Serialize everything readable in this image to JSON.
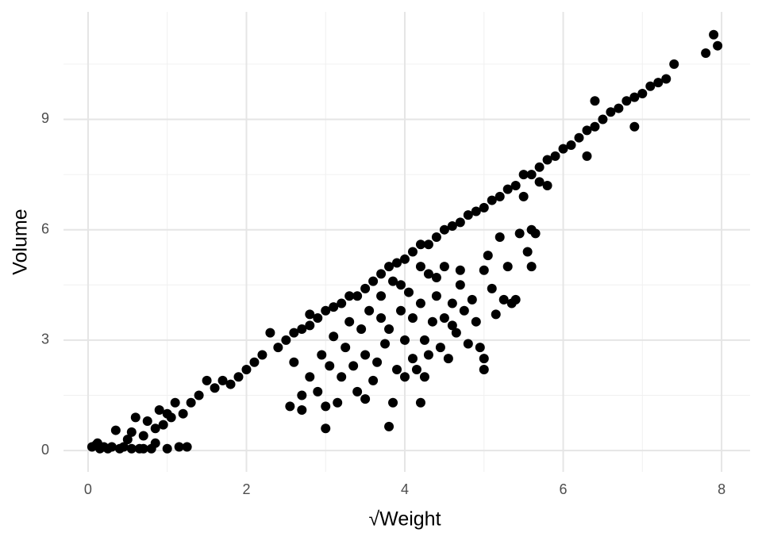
{
  "chart_data": {
    "type": "scatter",
    "x_label": "√Weight",
    "y_label": "Volume",
    "xlim": [
      -0.31,
      8.36
    ],
    "ylim": [
      -0.58,
      11.92
    ],
    "xticks": [
      0,
      2,
      4,
      6,
      8
    ],
    "yticks": [
      0,
      3,
      6,
      9
    ],
    "grid": true,
    "color": "#000000",
    "x": [
      0.05,
      0.1,
      0.15,
      0.2,
      0.25,
      0.3,
      0.35,
      0.4,
      0.45,
      0.5,
      0.55,
      0.6,
      0.65,
      0.7,
      0.75,
      0.8,
      0.85,
      0.9,
      0.95,
      1.0,
      1.05,
      1.1,
      1.15,
      1.2,
      1.25,
      0.85,
      0.55,
      0.12,
      0.7,
      1.0,
      1.3,
      1.4,
      1.5,
      1.6,
      1.7,
      1.8,
      1.9,
      2.0,
      2.1,
      2.2,
      2.3,
      2.4,
      2.5,
      2.6,
      2.7,
      2.8,
      2.9,
      3.0,
      3.1,
      3.2,
      3.3,
      3.4,
      3.5,
      3.6,
      3.7,
      3.8,
      3.9,
      4.0,
      4.1,
      4.2,
      4.3,
      4.4,
      4.5,
      4.6,
      4.7,
      4.8,
      4.9,
      5.0,
      5.1,
      5.2,
      5.3,
      5.4,
      5.5,
      5.6,
      5.7,
      5.8,
      5.9,
      6.0,
      6.1,
      6.2,
      6.3,
      6.4,
      6.5,
      6.6,
      6.7,
      6.8,
      6.9,
      7.0,
      7.1,
      7.2,
      7.3,
      7.4,
      7.8,
      7.9,
      7.95,
      6.3,
      6.4,
      5.7,
      5.8,
      6.9,
      5.5,
      2.55,
      2.6,
      2.7,
      2.7,
      2.8,
      2.8,
      2.9,
      2.95,
      3.0,
      3.0,
      3.05,
      3.1,
      3.15,
      3.2,
      3.25,
      3.3,
      3.35,
      3.4,
      3.45,
      3.5,
      3.5,
      3.55,
      3.6,
      3.65,
      3.7,
      3.7,
      3.75,
      3.8,
      3.8,
      3.85,
      3.85,
      3.9,
      3.95,
      4.0,
      4.0,
      4.05,
      4.1,
      4.1,
      4.15,
      4.2,
      4.2,
      4.25,
      4.3,
      4.3,
      4.35,
      4.4,
      4.45,
      4.5,
      4.5,
      4.55,
      4.6,
      4.65,
      4.7,
      4.75,
      4.8,
      4.85,
      4.9,
      4.95,
      5.0,
      5.0,
      5.05,
      5.1,
      5.15,
      5.2,
      5.25,
      5.3,
      5.35,
      5.4,
      5.45,
      5.55,
      5.6,
      5.6,
      5.65,
      4.2,
      4.4,
      3.95,
      4.7,
      5.0,
      4.6,
      4.25
    ],
    "y": [
      0.1,
      0.15,
      0.05,
      0.1,
      0.05,
      0.1,
      0.55,
      0.05,
      0.1,
      0.3,
      0.5,
      0.9,
      0.05,
      0.4,
      0.8,
      0.05,
      0.6,
      1.1,
      0.7,
      0.05,
      0.9,
      1.3,
      0.1,
      1.0,
      0.1,
      0.2,
      0.05,
      0.2,
      0.05,
      1.0,
      1.3,
      1.5,
      1.9,
      1.7,
      1.9,
      1.8,
      2.0,
      2.2,
      2.4,
      2.6,
      3.2,
      2.8,
      3.0,
      3.2,
      3.3,
      3.4,
      3.6,
      3.8,
      3.9,
      4.0,
      4.2,
      4.2,
      4.4,
      4.6,
      4.8,
      5.0,
      5.1,
      5.2,
      5.4,
      5.6,
      5.6,
      5.8,
      6.0,
      6.1,
      6.2,
      6.4,
      6.5,
      6.6,
      6.8,
      6.9,
      7.1,
      7.2,
      7.5,
      7.5,
      7.7,
      7.9,
      8.0,
      8.2,
      8.3,
      8.5,
      8.7,
      8.8,
      9.0,
      9.2,
      9.3,
      9.5,
      9.6,
      9.7,
      9.9,
      10.0,
      10.1,
      10.5,
      10.8,
      11.3,
      11.0,
      8.0,
      9.5,
      7.3,
      7.2,
      8.8,
      6.9,
      1.2,
      2.4,
      1.5,
      1.1,
      3.7,
      2.0,
      1.6,
      2.6,
      0.6,
      1.2,
      2.3,
      3.1,
      1.3,
      2.0,
      2.8,
      3.5,
      2.3,
      1.6,
      3.3,
      1.4,
      2.6,
      3.8,
      1.9,
      2.4,
      3.6,
      4.2,
      2.9,
      0.65,
      3.3,
      1.3,
      4.6,
      2.2,
      3.8,
      2.0,
      3.0,
      4.3,
      2.5,
      3.6,
      2.2,
      1.3,
      4.0,
      3.0,
      4.8,
      2.6,
      3.5,
      4.2,
      2.8,
      3.6,
      5.0,
      2.5,
      4.0,
      3.2,
      4.5,
      3.8,
      2.9,
      4.1,
      3.5,
      2.8,
      2.2,
      2.5,
      5.3,
      4.4,
      3.7,
      5.8,
      4.1,
      5.0,
      4.0,
      4.1,
      5.9,
      5.4,
      6.0,
      5.0,
      5.9,
      5.0,
      4.7,
      4.5,
      4.9,
      4.9,
      3.4,
      2.0
    ]
  }
}
